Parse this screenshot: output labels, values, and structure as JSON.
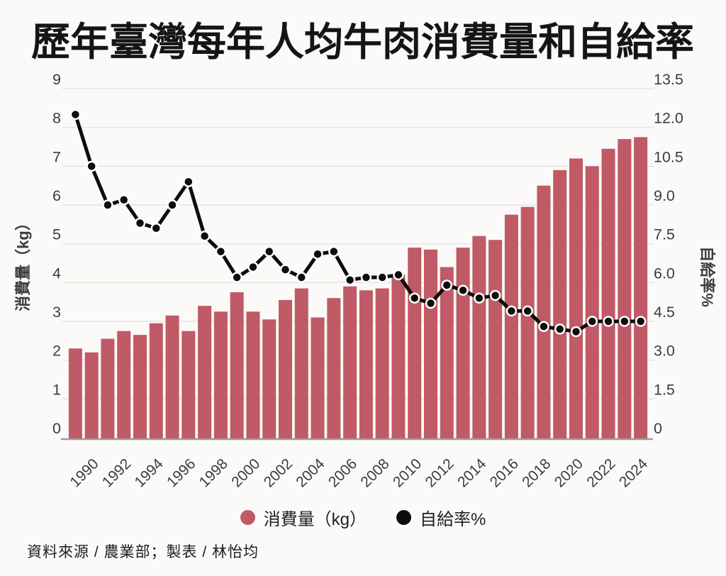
{
  "page": {
    "title": "歷年臺灣每年人均牛肉消費量和自給率",
    "footer": "資料來源 / 農業部；製表 / 林怡均"
  },
  "legend": {
    "consumption": "消費量（kg）",
    "self_sufficiency": "自給率%"
  },
  "colors": {
    "background": "#FBFAF8",
    "bar": "#C05A66",
    "line": "#0D0D0D",
    "dot_ring": "#FFFFFF",
    "grid": "#E8E5E1",
    "axis_line": "#9A9A9A",
    "axis_text": "#3C3C3C",
    "title_text": "#161414"
  },
  "chart_data": {
    "type": "combo-bar-line",
    "title": "歷年臺灣每年人均牛肉消費量和自給率",
    "categories": [
      1989,
      1990,
      1991,
      1992,
      1993,
      1994,
      1995,
      1996,
      1997,
      1998,
      1999,
      2000,
      2001,
      2002,
      2003,
      2004,
      2005,
      2006,
      2007,
      2008,
      2009,
      2010,
      2011,
      2012,
      2013,
      2014,
      2015,
      2016,
      2017,
      2018,
      2019,
      2020,
      2021,
      2022,
      2023,
      2024
    ],
    "series": [
      {
        "name": "消費量（kg）",
        "type": "bar",
        "axis": "left",
        "values": [
          2.3,
          2.2,
          2.55,
          2.75,
          2.65,
          2.95,
          3.15,
          2.75,
          3.4,
          3.25,
          3.75,
          3.25,
          3.05,
          3.55,
          3.85,
          3.1,
          3.6,
          3.9,
          3.8,
          3.85,
          4.2,
          4.9,
          4.85,
          4.4,
          4.9,
          5.2,
          5.1,
          5.75,
          5.95,
          6.5,
          6.9,
          7.2,
          7.0,
          7.45,
          7.7,
          7.75
        ]
      },
      {
        "name": "自給率%",
        "type": "line",
        "axis": "right",
        "values": [
          12.5,
          10.5,
          9.0,
          9.2,
          8.3,
          8.1,
          9.0,
          9.9,
          7.8,
          7.2,
          6.2,
          6.6,
          7.2,
          6.5,
          6.2,
          7.1,
          7.2,
          6.1,
          6.2,
          6.2,
          6.3,
          5.4,
          5.2,
          5.9,
          5.7,
          5.4,
          5.5,
          4.9,
          4.9,
          4.3,
          4.2,
          4.1,
          4.5,
          4.5,
          4.5,
          4.5
        ]
      }
    ],
    "left_axis": {
      "title": "消費量（kg）",
      "min": 0,
      "max": 9,
      "ticks": [
        0,
        1,
        2,
        3,
        4,
        5,
        6,
        7,
        8,
        9
      ]
    },
    "right_axis": {
      "title": "自給率%",
      "min": 0,
      "max": 13.5,
      "tick_labels": [
        "0",
        "1.5",
        "3.0",
        "4.5",
        "6.0",
        "7.5",
        "9.0",
        "10.5",
        "12.0",
        "13.5"
      ]
    },
    "x_axis": {
      "tick_labels": [
        "1990",
        "1992",
        "1994",
        "1996",
        "1998",
        "2000",
        "2002",
        "2004",
        "2006",
        "2008",
        "2010",
        "2012",
        "2014",
        "2016",
        "2018",
        "2020",
        "2022",
        "2024"
      ]
    },
    "grid": true,
    "legend_position": "bottom"
  }
}
